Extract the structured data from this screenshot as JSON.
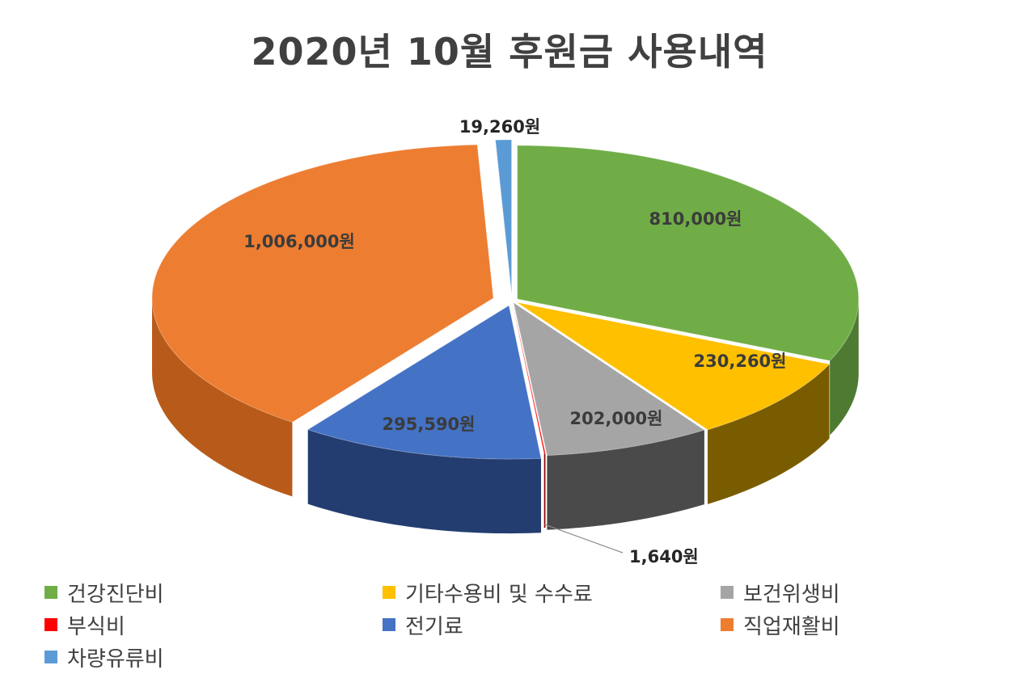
{
  "chart_data": {
    "type": "pie",
    "title": "2020년 10월 후원금 사용내역",
    "slices": [
      {
        "name": "건강진단비",
        "value": 810000,
        "label": "810,000원",
        "color": "#70ad47",
        "side": "#4e7a32"
      },
      {
        "name": "기타수용비 및 수수료",
        "value": 230260,
        "label": "230,260원",
        "color": "#ffc000",
        "side": "#7a5c00"
      },
      {
        "name": "보건위생비",
        "value": 202000,
        "label": "202,000원",
        "color": "#a5a5a5",
        "side": "#4a4a4a"
      },
      {
        "name": "부식비",
        "value": 1640,
        "label": "1,640원",
        "color": "#ff0000",
        "side": "#8a0000"
      },
      {
        "name": "전기료",
        "value": 295590,
        "label": "295,590원",
        "color": "#4472c4",
        "side": "#233d70"
      },
      {
        "name": "직업재활비",
        "value": 1006000,
        "label": "1,006,000원",
        "color": "#ed7d31",
        "side": "#b85b1a"
      },
      {
        "name": "차량유류비",
        "value": 19260,
        "label": "19,260원",
        "color": "#5b9bd5",
        "side": "#2f6aa0"
      }
    ],
    "legend_position": "bottom"
  }
}
